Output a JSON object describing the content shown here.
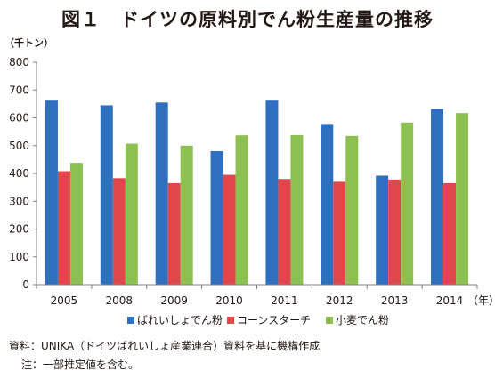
{
  "title": "図１　ドイツの原料別でん粉生産量の推移",
  "unit_label": "（千トン）",
  "x_unit_label": "（年）",
  "source": "資料：UNIKA（ドイツばれいしょ産業連合）資料を基に機構作成",
  "note": "注：一部推定値を含む。",
  "chart_data": {
    "type": "bar",
    "categories": [
      "2005",
      "2008",
      "2009",
      "2010",
      "2011",
      "2012",
      "2013",
      "2014"
    ],
    "series": [
      {
        "name": "ばれいしょでん粉",
        "color": "#2f6fbf",
        "values": [
          665,
          645,
          655,
          480,
          665,
          578,
          392,
          632
        ]
      },
      {
        "name": "コーンスターチ",
        "color": "#e0464a",
        "values": [
          408,
          383,
          365,
          395,
          380,
          370,
          378,
          365
        ]
      },
      {
        "name": "小麦でん粉",
        "color": "#8cc152",
        "values": [
          438,
          507,
          500,
          537,
          538,
          535,
          583,
          617
        ]
      }
    ],
    "ylim": [
      0,
      800
    ],
    "yticks": [
      0,
      100,
      200,
      300,
      400,
      500,
      600,
      700,
      800
    ],
    "grid": false,
    "legend_position": "bottom"
  }
}
